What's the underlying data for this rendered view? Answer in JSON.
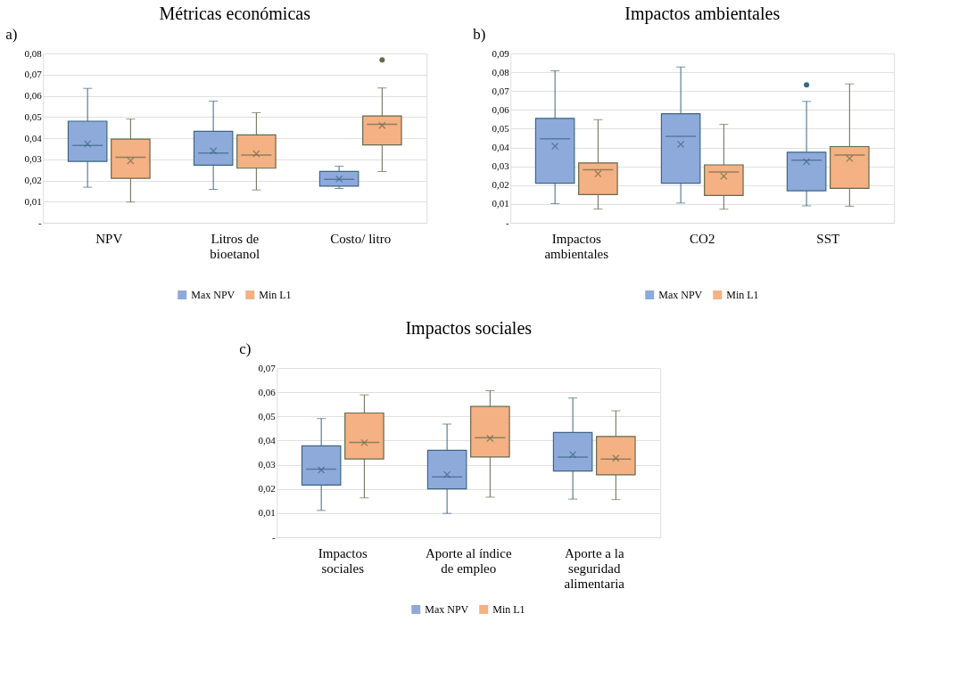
{
  "chart_data": [
    {
      "type": "box",
      "title": "Métricas económicas",
      "annotations": [
        "a)"
      ],
      "categories": [
        "NPV",
        "Litros de bioetanol",
        "Costo/ litro"
      ],
      "series": [
        {
          "name": "Max NPV",
          "color": "#8eaadb",
          "boxes": [
            {
              "low": 0.0168,
              "q1": 0.029,
              "median": 0.0365,
              "q3": 0.048,
              "high": 0.0635,
              "mean": 0.0373
            },
            {
              "low": 0.0158,
              "q1": 0.0272,
              "median": 0.033,
              "q3": 0.0432,
              "high": 0.0575,
              "mean": 0.034
            },
            {
              "low": 0.0162,
              "q1": 0.0173,
              "median": 0.0205,
              "q3": 0.0243,
              "high": 0.0267,
              "mean": 0.0207
            }
          ]
        },
        {
          "name": "Min L1",
          "color": "#f4b183",
          "boxes": [
            {
              "low": 0.0098,
              "q1": 0.021,
              "median": 0.031,
              "q3": 0.0395,
              "high": 0.049,
              "mean": 0.0293
            },
            {
              "low": 0.0155,
              "q1": 0.0258,
              "median": 0.032,
              "q3": 0.0415,
              "high": 0.052,
              "mean": 0.0326
            },
            {
              "low": 0.0242,
              "q1": 0.0368,
              "median": 0.0465,
              "q3": 0.0505,
              "high": 0.0637,
              "mean": 0.046,
              "outliers": [
                0.077
              ]
            }
          ]
        }
      ],
      "ylim": [
        0,
        0.08
      ],
      "yticks": [
        {
          "value": 0,
          "label": "-"
        },
        {
          "value": 0.01,
          "label": "0,01"
        },
        {
          "value": 0.02,
          "label": "0,02"
        },
        {
          "value": 0.03,
          "label": "0,03"
        },
        {
          "value": 0.04,
          "label": "0,04"
        },
        {
          "value": 0.05,
          "label": "0,05"
        },
        {
          "value": 0.06,
          "label": "0,06"
        },
        {
          "value": 0.07,
          "label": "0,07"
        },
        {
          "value": 0.08,
          "label": "0,08"
        }
      ],
      "grid": "y",
      "legend": "bottom"
    },
    {
      "type": "box",
      "title": "Impactos ambientales",
      "annotations": [
        "b)"
      ],
      "categories": [
        "Impactos ambientales",
        "CO2",
        "SST"
      ],
      "series": [
        {
          "name": "Max NPV",
          "color": "#8eaadb",
          "boxes": [
            {
              "low": 0.0102,
              "q1": 0.021,
              "median": 0.0447,
              "q3": 0.0555,
              "high": 0.0808,
              "mean": 0.0407
            },
            {
              "low": 0.0105,
              "q1": 0.021,
              "median": 0.046,
              "q3": 0.058,
              "high": 0.0828,
              "mean": 0.0417
            },
            {
              "low": 0.009,
              "q1": 0.017,
              "median": 0.0333,
              "q3": 0.0375,
              "high": 0.0645,
              "mean": 0.0325,
              "outliers": [
                0.0733
              ]
            }
          ]
        },
        {
          "name": "Min L1",
          "color": "#f4b183",
          "boxes": [
            {
              "low": 0.0073,
              "q1": 0.015,
              "median": 0.0282,
              "q3": 0.0318,
              "high": 0.0548,
              "mean": 0.026
            },
            {
              "low": 0.0072,
              "q1": 0.0145,
              "median": 0.027,
              "q3": 0.0308,
              "high": 0.0523,
              "mean": 0.0248
            },
            {
              "low": 0.0088,
              "q1": 0.0183,
              "median": 0.036,
              "q3": 0.0405,
              "high": 0.0738,
              "mean": 0.0342
            }
          ]
        }
      ],
      "ylim": [
        0,
        0.09
      ],
      "yticks": [
        {
          "value": 0,
          "label": "-"
        },
        {
          "value": 0.01,
          "label": "0,01"
        },
        {
          "value": 0.02,
          "label": "0,02"
        },
        {
          "value": 0.03,
          "label": "0,03"
        },
        {
          "value": 0.04,
          "label": "0,04"
        },
        {
          "value": 0.05,
          "label": "0,05"
        },
        {
          "value": 0.06,
          "label": "0,06"
        },
        {
          "value": 0.07,
          "label": "0,07"
        },
        {
          "value": 0.08,
          "label": "0,08"
        },
        {
          "value": 0.09,
          "label": "0,09"
        }
      ],
      "grid": "y",
      "legend": "bottom"
    },
    {
      "type": "box",
      "title": "Impactos sociales",
      "annotations": [
        "c)"
      ],
      "categories": [
        "Impactos sociales",
        "Aporte al índice de empleo",
        "Aporte a la seguridad alimentaria"
      ],
      "series": [
        {
          "name": "Max NPV",
          "color": "#8eaadb",
          "boxes": [
            {
              "low": 0.0111,
              "q1": 0.0216,
              "median": 0.0282,
              "q3": 0.0378,
              "high": 0.0491,
              "mean": 0.0278
            },
            {
              "low": 0.0099,
              "q1": 0.02,
              "median": 0.025,
              "q3": 0.036,
              "high": 0.0468,
              "mean": 0.0259
            },
            {
              "low": 0.0158,
              "q1": 0.0274,
              "median": 0.0332,
              "q3": 0.0433,
              "high": 0.0576,
              "mean": 0.0342
            }
          ]
        },
        {
          "name": "Min L1",
          "color": "#f4b183",
          "boxes": [
            {
              "low": 0.0163,
              "q1": 0.0324,
              "median": 0.0392,
              "q3": 0.0514,
              "high": 0.0589,
              "mean": 0.0391
            },
            {
              "low": 0.0166,
              "q1": 0.0332,
              "median": 0.0412,
              "q3": 0.0541,
              "high": 0.0606,
              "mean": 0.0409
            },
            {
              "low": 0.0156,
              "q1": 0.0258,
              "median": 0.0323,
              "q3": 0.0417,
              "high": 0.0523,
              "mean": 0.0327
            }
          ]
        }
      ],
      "ylim": [
        0,
        0.07
      ],
      "yticks": [
        {
          "value": 0,
          "label": "-"
        },
        {
          "value": 0.01,
          "label": "0,01"
        },
        {
          "value": 0.02,
          "label": "0,02"
        },
        {
          "value": 0.03,
          "label": "0,03"
        },
        {
          "value": 0.04,
          "label": "0,04"
        },
        {
          "value": 0.05,
          "label": "0,05"
        },
        {
          "value": 0.06,
          "label": "0,06"
        },
        {
          "value": 0.07,
          "label": "0,07"
        }
      ],
      "grid": "y",
      "legend": "bottom"
    }
  ]
}
